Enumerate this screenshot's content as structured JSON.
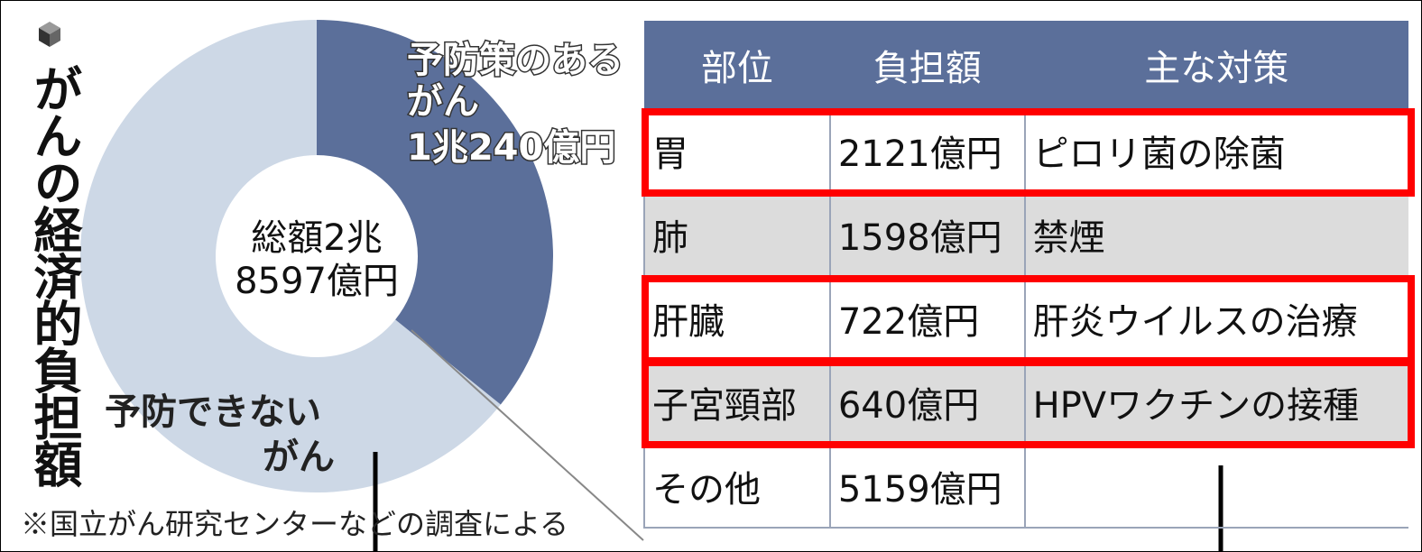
{
  "title": "がんの経済的負担額",
  "chart_data": {
    "type": "pie",
    "donut": true,
    "center_label": [
      "総額2兆",
      "8597億円"
    ],
    "categories": [
      [
        "予防策のある",
        "がん"
      ],
      [
        "予防できない",
        "がん"
      ]
    ],
    "values": [
      10240,
      18357
    ],
    "value_labels": [
      "1兆240億円",
      null
    ],
    "colors": [
      "#5b6f9a",
      "#cdd8e6"
    ]
  },
  "note": "※国立がん研究センターなどの調査による",
  "table": {
    "header": [
      "部位",
      "負担額",
      "主な対策"
    ],
    "rows": [
      [
        "胃",
        "2121億円",
        "ピロリ菌の除菌"
      ],
      [
        "肺",
        "1598億円",
        "禁煙"
      ],
      [
        "肝臓",
        "722億円",
        "肝炎ウイルスの治療"
      ],
      [
        "子宮頸部",
        "640億円",
        "HPVワクチンの接種"
      ],
      [
        "その他",
        "5159億円"
      ]
    ],
    "highlighted_rows": [
      0,
      2,
      3
    ]
  }
}
